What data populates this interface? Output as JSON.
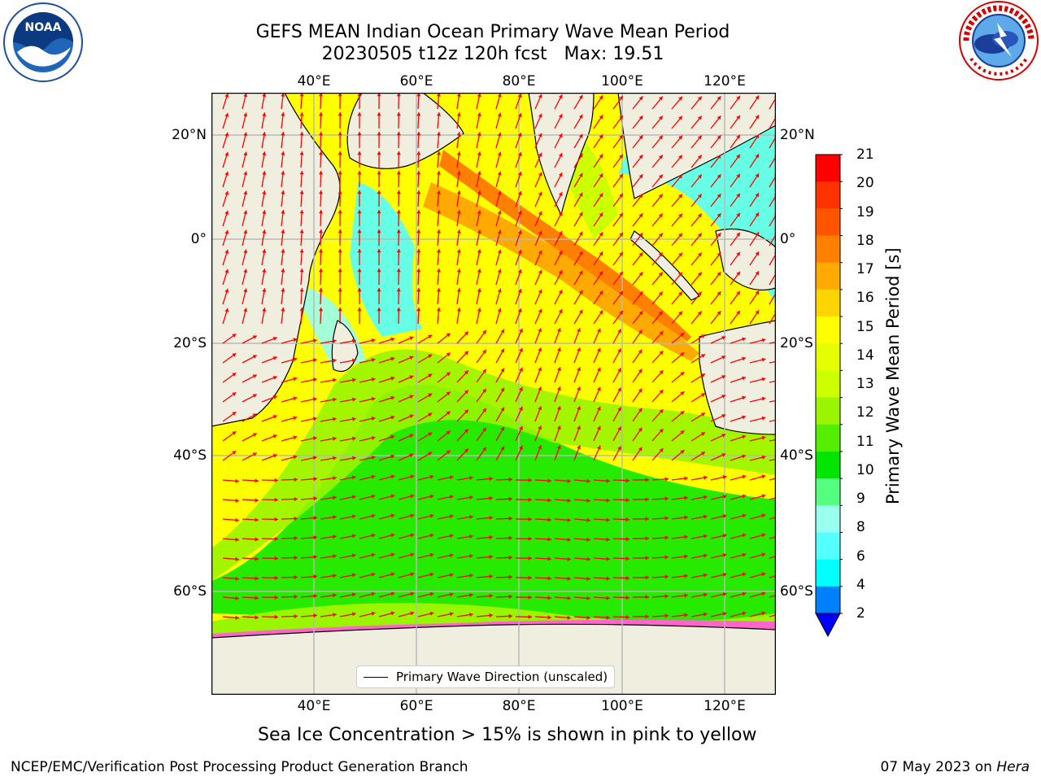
{
  "title": {
    "line1": "GEFS MEAN Indian Ocean Primary Wave Mean Period",
    "line2": "20230505 t12z 120h fcst   Max: 19.51"
  },
  "map": {
    "lon_ticks_top": [
      "40°E",
      "60°E",
      "80°E",
      "100°E",
      "120°E"
    ],
    "lon_ticks_bottom": [
      "40°E",
      "60°E",
      "80°E",
      "100°E",
      "120°E"
    ],
    "lat_ticks_left": [
      "20°N",
      "0°",
      "20°S",
      "40°S",
      "60°S"
    ],
    "lat_ticks_right": [
      "20°N",
      "0°",
      "20°S",
      "40°S",
      "60°S"
    ],
    "land_color": "#efeedf",
    "grid_color": "#b8b8b8",
    "vector_color": "#ff0000"
  },
  "legend": {
    "label": "Primary Wave Direction (unscaled)"
  },
  "colorbar": {
    "label": "Primary Wave Mean Period [s]",
    "ticks": [
      "21",
      "20",
      "19",
      "18",
      "17",
      "16",
      "15",
      "14",
      "13",
      "12",
      "11",
      "10",
      "9",
      "8",
      "6",
      "4",
      "2"
    ],
    "colors": [
      "#ff0000",
      "#ff3300",
      "#ff5500",
      "#ff8000",
      "#ffaa00",
      "#ffd400",
      "#ffff00",
      "#e6ff00",
      "#ccff00",
      "#99f500",
      "#55ee00",
      "#00e600",
      "#55ff7f",
      "#99ffee",
      "#55ffff",
      "#00ffff",
      "#0080ff"
    ],
    "under_color": "#0000ff"
  },
  "caption": "Sea Ice Concentration > 15% is shown in pink to yellow",
  "footer": {
    "left": "NCEP/EMC/Verification Post Processing Product Generation Branch",
    "right_prefix": "07 May 2023 on ",
    "right_host": "Hera"
  }
}
